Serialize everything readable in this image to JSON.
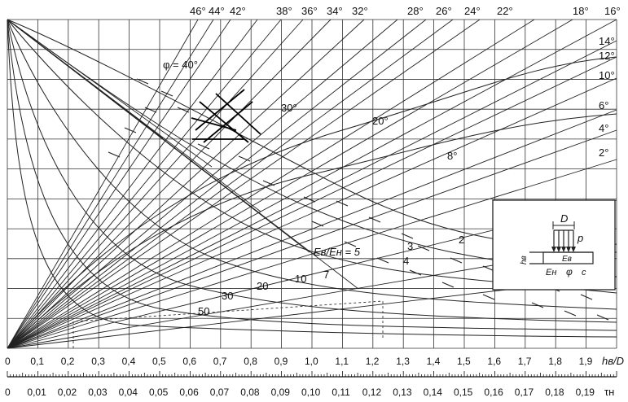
{
  "chart_data": {
    "type": "line",
    "x_axis": {
      "label": "hв/D",
      "ticks": [
        "0",
        "0,1",
        "0,2",
        "0,3",
        "0,4",
        "0,5",
        "0,6",
        "0,7",
        "0,8",
        "0,9",
        "1,0",
        "1,1",
        "1,2",
        "1,3",
        "1,4",
        "1,5",
        "1,6",
        "1,7",
        "1,8",
        "1,9"
      ],
      "range": [
        0,
        2.0
      ]
    },
    "x2_axis": {
      "label": "τн",
      "ticks": [
        "0",
        "0,01",
        "0,02",
        "0,03",
        "0,04",
        "0,05",
        "0,06",
        "0,07",
        "0,08",
        "0,09",
        "0,10",
        "0,11",
        "0,12",
        "0,13",
        "0,14",
        "0,15",
        "0,16",
        "0,17",
        "0,18",
        "0,19"
      ],
      "range": [
        0,
        0.2
      ]
    },
    "top_angle_labels": [
      "46°",
      "44°",
      "42°",
      "38°",
      "36°",
      "34°",
      "32°",
      "28°",
      "26°",
      "24°",
      "22°",
      "18°",
      "16°"
    ],
    "right_angle_labels": [
      "14°",
      "12°",
      "10°",
      "6°",
      "4°",
      "2°"
    ],
    "inner_angle_labels": [
      "φ = 40°",
      "30°",
      "20°",
      "8°"
    ],
    "ratio_labels": [
      "Eв/Eн = 5",
      "2",
      "3",
      "4",
      "7",
      "10",
      "20",
      "30",
      "50"
    ],
    "grid": true,
    "inset": {
      "D": "D",
      "p": "p",
      "hv": "hв",
      "Ev": "Eв",
      "En": "Eн",
      "phi": "φ",
      "c": "c"
    }
  }
}
